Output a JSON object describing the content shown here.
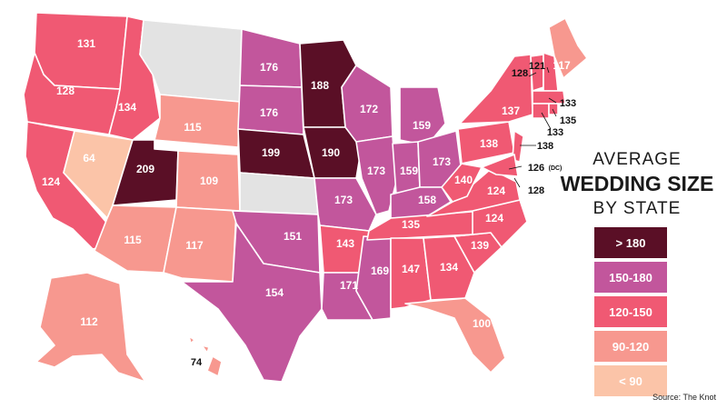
{
  "title": {
    "line1": "AVERAGE",
    "line2": "WEDDING SIZE",
    "line3": "BY STATE"
  },
  "legend": [
    {
      "label": "> 180",
      "color": "#5a0f26"
    },
    {
      "label": "150-180",
      "color": "#c2569c"
    },
    {
      "label": "120-150",
      "color": "#f05973"
    },
    {
      "label": "90-120",
      "color": "#f7988f"
    },
    {
      "label": "< 90",
      "color": "#fbc4a8"
    }
  ],
  "no_data_color": "#e3e3e3",
  "source": "Source: The Knot",
  "states": {
    "WA": {
      "value": "131"
    },
    "OR": {
      "value": "128"
    },
    "CA": {
      "value": "124"
    },
    "NV": {
      "value": "64"
    },
    "ID": {
      "value": "134"
    },
    "UT": {
      "value": "209"
    },
    "AZ": {
      "value": "115"
    },
    "WY": {
      "value": "115"
    },
    "CO": {
      "value": "109"
    },
    "NM": {
      "value": "117"
    },
    "ND": {
      "value": "176"
    },
    "SD": {
      "value": "176"
    },
    "NE": {
      "value": "199"
    },
    "OK": {
      "value": "151"
    },
    "TX": {
      "value": "154"
    },
    "MN": {
      "value": "188"
    },
    "IA": {
      "value": "190"
    },
    "MO": {
      "value": "173"
    },
    "AR": {
      "value": "143"
    },
    "LA": {
      "value": "171"
    },
    "WI": {
      "value": "172"
    },
    "IL": {
      "value": "173"
    },
    "MI": {
      "value": "159"
    },
    "IN": {
      "value": "159"
    },
    "OH": {
      "value": "173"
    },
    "KY": {
      "value": "158"
    },
    "TN": {
      "value": "135"
    },
    "MS": {
      "value": "169"
    },
    "AL": {
      "value": "147"
    },
    "GA": {
      "value": "134"
    },
    "FL": {
      "value": "100"
    },
    "SC": {
      "value": "139"
    },
    "NC": {
      "value": "124"
    },
    "VA": {
      "value": "124"
    },
    "WV": {
      "value": "140"
    },
    "PA": {
      "value": "138"
    },
    "NY": {
      "value": "137"
    },
    "ME": {
      "value": "117"
    },
    "VT": {
      "value": "128"
    },
    "NH": {
      "value": "121"
    },
    "MA": {
      "value": "133"
    },
    "RI": {
      "value": "135"
    },
    "CT": {
      "value": "133"
    },
    "NJ": {
      "value": "138"
    },
    "MD": {
      "value": "128"
    },
    "DC": {
      "value": "126",
      "note": "(DC)"
    },
    "AK": {
      "value": "112"
    },
    "HI": {
      "value": "74"
    }
  }
}
